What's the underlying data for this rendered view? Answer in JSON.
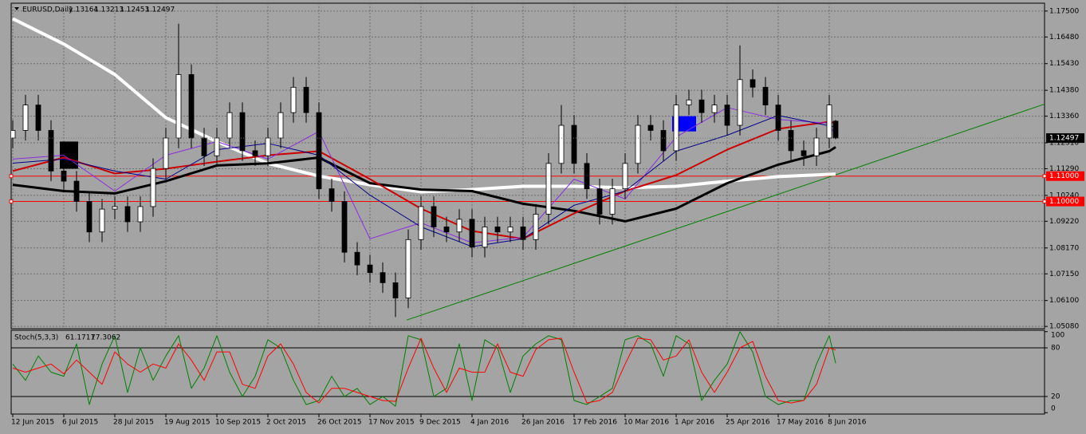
{
  "chart_data": [
    {
      "type": "candlestick",
      "symbol": "EURUSD,Daily",
      "x": [
        0,
        4,
        8,
        12,
        16,
        20,
        24,
        28,
        32,
        36,
        40,
        44,
        48,
        52,
        56,
        60,
        64,
        68,
        72,
        76,
        80,
        84,
        88,
        92,
        96,
        100,
        104,
        108,
        112,
        116,
        120,
        124,
        128,
        132,
        136,
        140,
        144,
        148,
        152,
        156,
        160,
        164,
        168,
        172,
        176,
        180,
        184,
        188,
        192,
        196,
        200,
        204,
        208,
        212,
        216,
        220,
        224,
        228,
        232,
        236,
        240,
        244,
        248,
        252,
        256,
        258
      ],
      "open": [
        1.125,
        1.128,
        1.138,
        1.128,
        1.112,
        1.108,
        1.1,
        1.088,
        1.097,
        1.098,
        1.092,
        1.098,
        1.113,
        1.125,
        1.15,
        1.125,
        1.118,
        1.125,
        1.135,
        1.12,
        1.118,
        1.125,
        1.135,
        1.145,
        1.135,
        1.105,
        1.1,
        1.08,
        1.075,
        1.072,
        1.068,
        1.062,
        1.085,
        1.098,
        1.09,
        1.088,
        1.093,
        1.082,
        1.09,
        1.088,
        1.09,
        1.085,
        1.095,
        1.115,
        1.13,
        1.115,
        1.105,
        1.095,
        1.105,
        1.115,
        1.13,
        1.128,
        1.12,
        1.138,
        1.14,
        1.135,
        1.138,
        1.13,
        1.148,
        1.145,
        1.138,
        1.128,
        1.12,
        1.118,
        1.125,
        1.13164
      ],
      "high": [
        1.132,
        1.142,
        1.142,
        1.132,
        1.116,
        1.112,
        1.104,
        1.101,
        1.102,
        1.102,
        1.102,
        1.117,
        1.129,
        1.17,
        1.154,
        1.129,
        1.129,
        1.139,
        1.139,
        1.124,
        1.129,
        1.139,
        1.149,
        1.149,
        1.139,
        1.109,
        1.104,
        1.084,
        1.079,
        1.076,
        1.072,
        1.089,
        1.102,
        1.102,
        1.094,
        1.097,
        1.097,
        1.094,
        1.094,
        1.094,
        1.094,
        1.099,
        1.119,
        1.138,
        1.134,
        1.119,
        1.109,
        1.109,
        1.119,
        1.134,
        1.134,
        1.132,
        1.142,
        1.144,
        1.144,
        1.142,
        1.142,
        1.1615,
        1.152,
        1.149,
        1.142,
        1.132,
        1.124,
        1.129,
        1.142,
        1.13213
      ],
      "low": [
        1.121,
        1.124,
        1.124,
        1.108,
        1.104,
        1.096,
        1.084,
        1.084,
        1.093,
        1.088,
        1.088,
        1.094,
        1.109,
        1.121,
        1.121,
        1.114,
        1.114,
        1.121,
        1.116,
        1.114,
        1.114,
        1.121,
        1.131,
        1.131,
        1.101,
        1.096,
        1.076,
        1.071,
        1.068,
        1.064,
        1.0545,
        1.058,
        1.081,
        1.086,
        1.084,
        1.084,
        1.078,
        1.078,
        1.084,
        1.084,
        1.081,
        1.081,
        1.091,
        1.111,
        1.111,
        1.101,
        1.091,
        1.091,
        1.101,
        1.111,
        1.124,
        1.116,
        1.116,
        1.134,
        1.131,
        1.131,
        1.126,
        1.126,
        1.141,
        1.134,
        1.124,
        1.116,
        1.114,
        1.114,
        1.121,
        1.12453
      ],
      "close": [
        1.128,
        1.138,
        1.128,
        1.112,
        1.108,
        1.1,
        1.088,
        1.097,
        1.098,
        1.092,
        1.098,
        1.113,
        1.125,
        1.15,
        1.125,
        1.118,
        1.125,
        1.135,
        1.12,
        1.118,
        1.125,
        1.135,
        1.145,
        1.135,
        1.105,
        1.1,
        1.08,
        1.075,
        1.072,
        1.068,
        1.062,
        1.085,
        1.098,
        1.09,
        1.088,
        1.093,
        1.082,
        1.09,
        1.088,
        1.09,
        1.085,
        1.095,
        1.115,
        1.13,
        1.115,
        1.105,
        1.095,
        1.105,
        1.115,
        1.13,
        1.128,
        1.12,
        1.138,
        1.14,
        1.135,
        1.138,
        1.13,
        1.148,
        1.145,
        1.138,
        1.128,
        1.12,
        1.118,
        1.125,
        1.138,
        1.12497
      ],
      "up_color": "#ffffff",
      "down_color": "#000000",
      "wick_color": "#000000",
      "series": [
        {
          "color": "#ffffff",
          "width": 4,
          "x": [
            0,
            16,
            32,
            48,
            64,
            80,
            96,
            112,
            128,
            144,
            160,
            176,
            192,
            208,
            224,
            240,
            256,
            258
          ],
          "values": [
            1.172,
            1.162,
            1.15,
            1.133,
            1.1236,
            1.115,
            1.11,
            1.1066,
            1.1038,
            1.1047,
            1.106,
            1.106,
            1.1054,
            1.106,
            1.108,
            1.1098,
            1.1107,
            1.1108
          ]
        },
        {
          "color": "#000000",
          "width": 3,
          "x": [
            0,
            16,
            32,
            48,
            64,
            80,
            96,
            112,
            128,
            144,
            160,
            176,
            192,
            208,
            224,
            240,
            256,
            258
          ],
          "values": [
            1.1066,
            1.1041,
            1.1032,
            1.108,
            1.1142,
            1.115,
            1.1173,
            1.1072,
            1.1047,
            1.1041,
            1.0991,
            1.0963,
            1.0922,
            1.0972,
            1.1072,
            1.1145,
            1.1198,
            1.1214
          ]
        },
        {
          "color": "#cc0000",
          "width": 2,
          "x": [
            0,
            16,
            32,
            48,
            64,
            80,
            96,
            112,
            128,
            144,
            160,
            176,
            192,
            208,
            224,
            240,
            256,
            258
          ],
          "values": [
            1.112,
            1.1173,
            1.111,
            1.1129,
            1.1157,
            1.1182,
            1.1198,
            1.1088,
            1.0972,
            1.0884,
            1.0853,
            1.0953,
            1.1041,
            1.1104,
            1.1204,
            1.1286,
            1.1314,
            1.1308
          ]
        },
        {
          "color": "#8a2be2",
          "width": 1,
          "x": [
            0,
            16,
            32,
            48,
            64,
            80,
            96,
            112,
            128,
            144,
            160,
            176,
            192,
            208,
            224,
            240,
            256,
            258
          ],
          "values": [
            1.1167,
            1.1182,
            1.1041,
            1.1182,
            1.1236,
            1.1167,
            1.1276,
            1.0853,
            1.0916,
            1.0837,
            1.0859,
            1.1088,
            1.101,
            1.1254,
            1.137,
            1.1323,
            1.1308,
            1.1254
          ]
        },
        {
          "color": "#00008b",
          "width": 1,
          "x": [
            0,
            16,
            32,
            48,
            64,
            80,
            96,
            112,
            128,
            144,
            160,
            176,
            192,
            208,
            224,
            240,
            256,
            258
          ],
          "values": [
            1.1151,
            1.1167,
            1.112,
            1.1088,
            1.1204,
            1.1229,
            1.1182,
            1.1025,
            1.09,
            1.0822,
            1.0853,
            1.0985,
            1.1041,
            1.1198,
            1.1261,
            1.1339,
            1.1298,
            1.1292
          ]
        }
      ],
      "levels": [
        {
          "value": 1.11,
          "label": "1.11000",
          "color": "#ff0000"
        },
        {
          "value": 1.1,
          "label": "1.10000",
          "color": "#ff0000"
        }
      ],
      "trendline": {
        "x": [
          123.5,
          325.5
        ],
        "y": [
          1.0533,
          1.1392
        ],
        "color": "#008000"
      },
      "rectangles": [
        {
          "x": [
            14.75,
            20.5
          ],
          "y": [
            1.1129,
            1.1236
          ],
          "color": "#000000"
        },
        {
          "x": [
            206.75,
            214.25
          ],
          "y": [
            1.1276,
            1.1336
          ],
          "color": "#0000ff"
        }
      ],
      "xlim": [
        -0.5,
        323.5
      ],
      "ylim": [
        1.0499,
        1.1781
      ],
      "yticks": [
        {
          "value": 1.175,
          "label": "1.17500"
        },
        {
          "value": 1.1648,
          "label": "1.16480"
        },
        {
          "value": 1.1543,
          "label": "1.15430"
        },
        {
          "value": 1.1438,
          "label": "1.14380"
        },
        {
          "value": 1.1336,
          "label": "1.13360"
        },
        {
          "value": 1.1231,
          "label": "1.12310"
        },
        {
          "value": 1.1129,
          "label": "1.11290"
        },
        {
          "value": 1.1024,
          "label": "1.10240"
        },
        {
          "value": 1.0922,
          "label": "1.09220"
        },
        {
          "value": 1.0817,
          "label": "1.08170"
        },
        {
          "value": 1.0715,
          "label": "1.07150"
        },
        {
          "value": 1.061,
          "label": "1.06100"
        },
        {
          "value": 1.0508,
          "label": "1.05080"
        }
      ],
      "xticks": [
        {
          "value": 0,
          "label": "12 Jun 2015"
        },
        {
          "value": 16,
          "label": "6 Jul 2015"
        },
        {
          "value": 32,
          "label": "28 Jul 2015"
        },
        {
          "value": 48,
          "label": "19 Aug 2015"
        },
        {
          "value": 64,
          "label": "10 Sep 2015"
        },
        {
          "value": 80,
          "label": "2 Oct 2015"
        },
        {
          "value": 96,
          "label": "26 Oct 2015"
        },
        {
          "value": 112,
          "label": "17 Nov 2015"
        },
        {
          "value": 128,
          "label": "9 Dec 2015"
        },
        {
          "value": 144,
          "label": "4 Jan 2016"
        },
        {
          "value": 160,
          "label": "26 Jan 2016"
        },
        {
          "value": 176,
          "label": "17 Feb 2016"
        },
        {
          "value": 192,
          "label": "10 Mar 2016"
        },
        {
          "value": 208,
          "label": "1 Apr 2016"
        },
        {
          "value": 224,
          "label": "25 Apr 2016"
        },
        {
          "value": 240,
          "label": "17 May 2016"
        },
        {
          "value": 256,
          "label": "8 Jun 2016"
        }
      ],
      "grid": true
    },
    {
      "type": "line",
      "title": "Stoch(5,3,3)",
      "x": [
        0,
        4,
        8,
        12,
        16,
        20,
        24,
        28,
        32,
        36,
        40,
        44,
        48,
        52,
        56,
        60,
        64,
        68,
        72,
        76,
        80,
        84,
        88,
        92,
        96,
        100,
        104,
        108,
        112,
        116,
        120,
        124,
        128,
        132,
        136,
        140,
        144,
        148,
        152,
        156,
        160,
        164,
        168,
        172,
        176,
        180,
        184,
        188,
        192,
        196,
        200,
        204,
        208,
        212,
        216,
        220,
        224,
        228,
        232,
        236,
        240,
        244,
        248,
        252,
        256,
        258
      ],
      "series": [
        {
          "color": "#008000",
          "values": [
            60,
            40,
            70,
            50,
            45,
            85,
            10,
            60,
            95,
            25,
            80,
            40,
            70,
            95,
            30,
            55,
            95,
            50,
            20,
            45,
            90,
            80,
            40,
            10,
            15,
            45,
            20,
            30,
            10,
            20,
            8,
            95,
            90,
            20,
            30,
            85,
            15,
            90,
            80,
            25,
            70,
            85,
            95,
            90,
            15,
            10,
            20,
            30,
            90,
            95,
            85,
            45,
            95,
            85,
            15,
            40,
            60,
            100,
            75,
            20,
            10,
            15,
            15,
            60,
            95,
            61.1711
          ]
        },
        {
          "color": "#ff0000",
          "values": [
            55,
            50,
            55,
            60,
            48,
            65,
            50,
            35,
            75,
            60,
            50,
            60,
            55,
            85,
            65,
            40,
            75,
            75,
            35,
            30,
            70,
            85,
            60,
            25,
            12,
            30,
            30,
            25,
            20,
            15,
            14,
            55,
            92,
            55,
            25,
            55,
            50,
            50,
            85,
            50,
            45,
            78,
            90,
            92,
            50,
            12,
            15,
            25,
            60,
            92,
            90,
            65,
            70,
            90,
            50,
            25,
            50,
            80,
            88,
            45,
            15,
            12,
            15,
            35,
            80,
            77.3062
          ]
        }
      ],
      "xlim": [
        -0.5,
        323.5
      ],
      "ylim": [
        -1.7,
        101.7
      ],
      "yticks": [
        0,
        20,
        80,
        100
      ]
    }
  ]
}
